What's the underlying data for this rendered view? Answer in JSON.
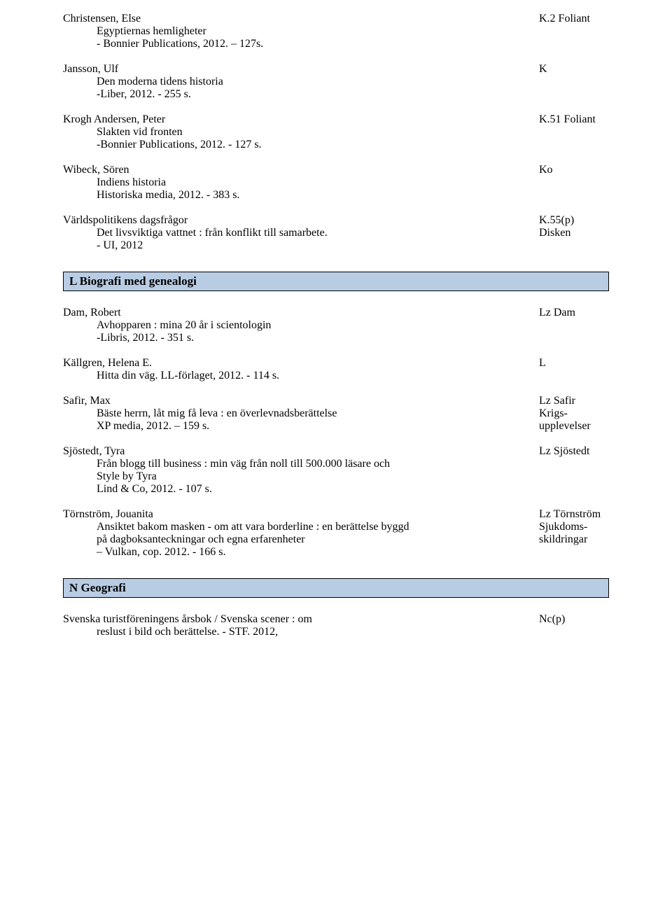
{
  "entries_top": [
    {
      "author": "Christensen, Else",
      "code": "K.2 Foliant",
      "lines": [
        "Egyptiernas hemligheter",
        "- Bonnier Publications, 2012. – 127s."
      ]
    },
    {
      "author": "Jansson, Ulf",
      "code": "K",
      "lines": [
        "Den moderna tidens historia",
        "-Liber, 2012. - 255 s."
      ]
    },
    {
      "author": "Krogh Andersen, Peter",
      "code": "K.51 Foliant",
      "lines": [
        "Slakten vid fronten",
        "-Bonnier Publications, 2012. - 127 s."
      ]
    },
    {
      "author": "Wibeck, Sören",
      "code": "Ko",
      "lines": [
        "Indiens historia",
        "Historiska media, 2012. - 383 s."
      ]
    },
    {
      "author": "Världspolitikens dagsfrågor",
      "code": "K.55(p)",
      "lines_with_code": [
        {
          "text": "Det livsviktiga vattnet : från konflikt till samarbete.",
          "code": "Disken"
        },
        {
          "text": " - UI, 2012",
          "code": ""
        }
      ]
    }
  ],
  "section_L": {
    "title": "L  Biografi med genealogi",
    "entries": [
      {
        "author": "Dam, Robert",
        "code": "Lz Dam",
        "lines": [
          "Avhopparen : mina 20 år i scientologin",
          "-Libris, 2012. - 351 s."
        ]
      },
      {
        "author": "Källgren, Helena E.",
        "code": "L",
        "lines": [
          "Hitta din väg. LL-förlaget, 2012. - 114 s."
        ]
      },
      {
        "author": "Safir, Max",
        "code": "Lz Safir",
        "lines_with_code": [
          {
            "text": "Bäste herrn, låt mig få leva : en överlevnadsberättelse",
            "code": "Krigs-"
          },
          {
            "text": " XP media, 2012. – 159 s.",
            "code": "upplevelser"
          }
        ]
      },
      {
        "author": "Sjöstedt, Tyra",
        "code": "Lz Sjöstedt",
        "lines": [
          "Från blogg till business : min väg från noll till 500.000 läsare och",
          "Style by Tyra",
          " Lind & Co, 2012. - 107 s."
        ]
      },
      {
        "author": "Törnström, Jouanita",
        "code": "Lz Törnström",
        "lines_with_code": [
          {
            "text": "Ansiktet bakom masken - om att vara borderline : en berättelse byggd",
            "code": "Sjukdoms-"
          },
          {
            "text": "på dagboksanteckningar och egna erfarenheter",
            "code": "skildringar"
          },
          {
            "text": " – Vulkan, cop. 2012. - 166 s.",
            "code": ""
          }
        ]
      }
    ]
  },
  "section_N": {
    "title": "N  Geografi",
    "entries": [
      {
        "author": "Svenska turistföreningens årsbok / Svenska scener : om",
        "code": "Nc(p)",
        "lines": [
          "reslust i bild och berättelse. - STF. 2012,"
        ]
      }
    ]
  },
  "colors": {
    "section_bg": "#b8cce4",
    "border": "#000000",
    "text": "#000000",
    "page_bg": "#ffffff"
  }
}
